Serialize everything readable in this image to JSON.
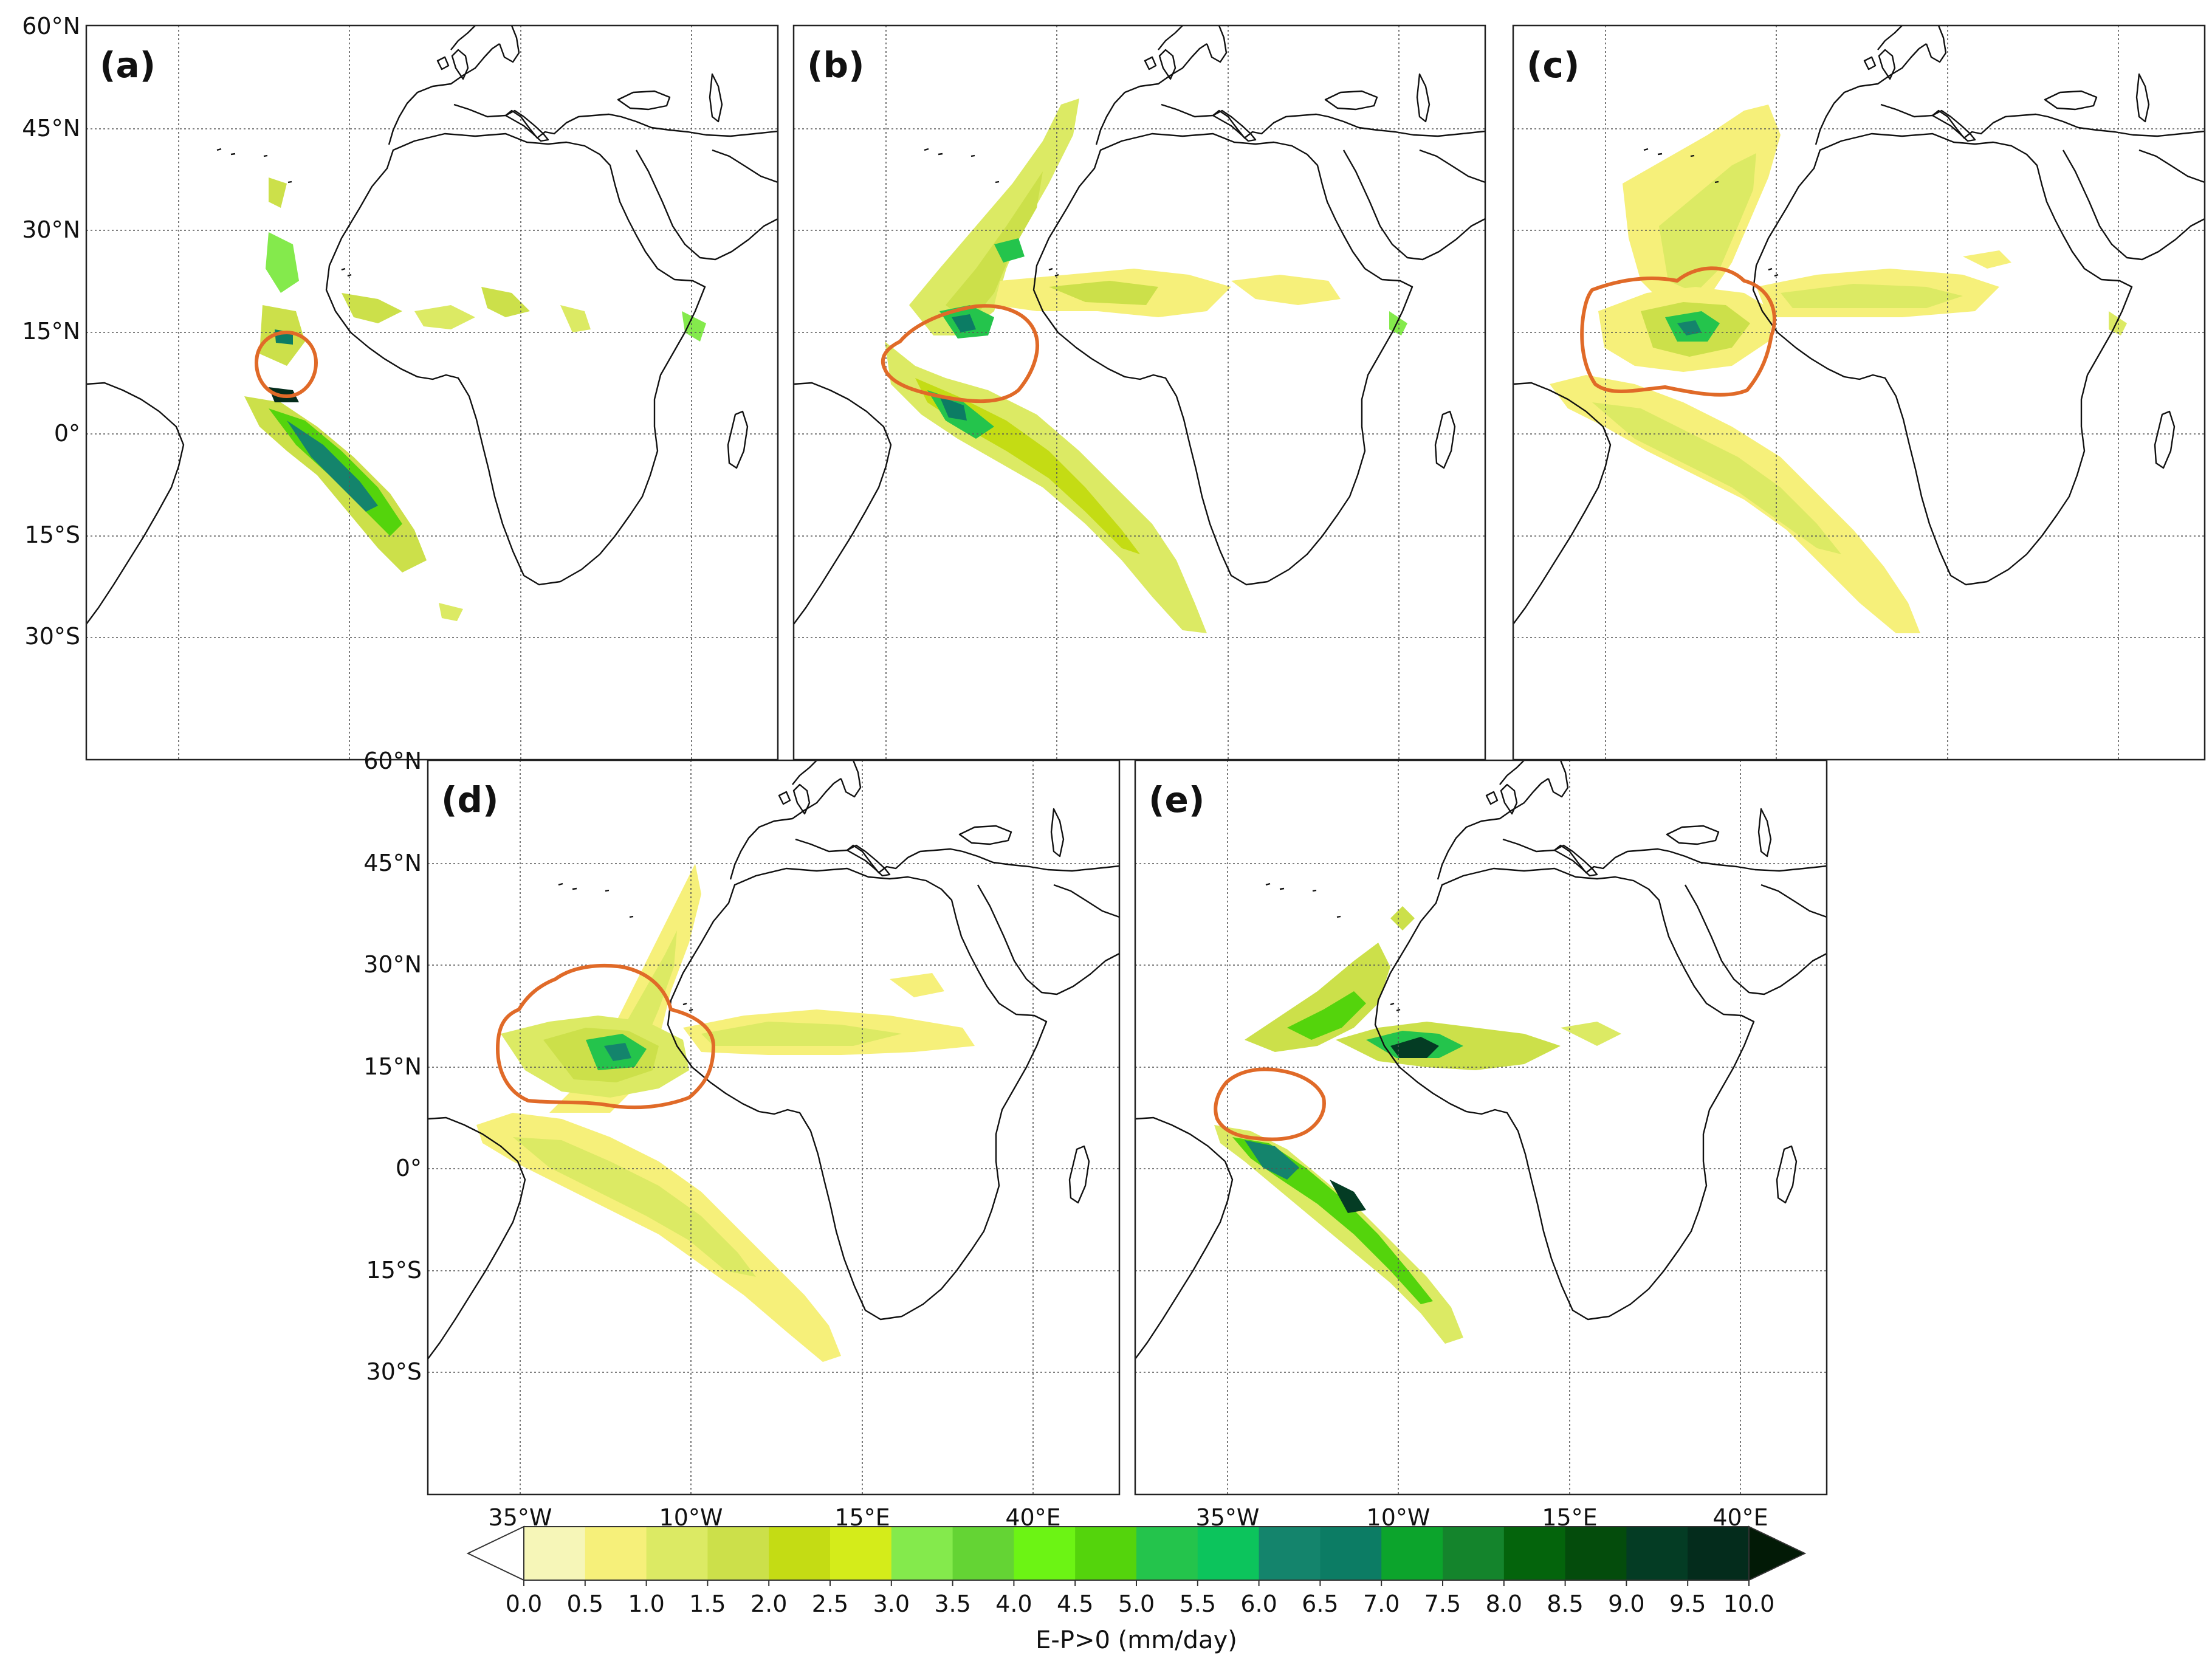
{
  "panels": [
    {
      "id": "a",
      "label": "(a)"
    },
    {
      "id": "b",
      "label": "(b)"
    },
    {
      "id": "c",
      "label": "(c)"
    },
    {
      "id": "d",
      "label": "(d)"
    },
    {
      "id": "e",
      "label": "(e)"
    }
  ],
  "axes": {
    "lat_labels": [
      "60°N",
      "45°N",
      "30°N",
      "15°N",
      "0°",
      "15°S",
      "30°S"
    ],
    "lon_labels": [
      "35°W",
      "10°W",
      "15°E",
      "40°E"
    ]
  },
  "colorbar": {
    "title": "E-P>0 (mm/day)",
    "ticks": [
      "0.0",
      "0.5",
      "1.0",
      "1.5",
      "2.0",
      "2.5",
      "3.0",
      "3.5",
      "4.0",
      "4.5",
      "5.0",
      "5.5",
      "6.0",
      "6.5",
      "7.0",
      "7.5",
      "8.0",
      "8.5",
      "9.0",
      "9.5",
      "10.0"
    ],
    "colors": [
      "#f6f6b8",
      "#f6f07a",
      "#dcea64",
      "#cce04a",
      "#c4dc14",
      "#d4ec1a",
      "#84ea4c",
      "#64d434",
      "#6cf414",
      "#54d40c",
      "#24c44c",
      "#0cc45c",
      "#14846c",
      "#0c7c64",
      "#0ca42c",
      "#14842c",
      "#04640c",
      "#044c0c",
      "#043c24",
      "#042c1c"
    ],
    "under_color": "#ffffff",
    "over_color": "#021a06"
  },
  "colors": {
    "contour": "#e06a28",
    "coastline": "#111111",
    "grid": "#555555"
  }
}
